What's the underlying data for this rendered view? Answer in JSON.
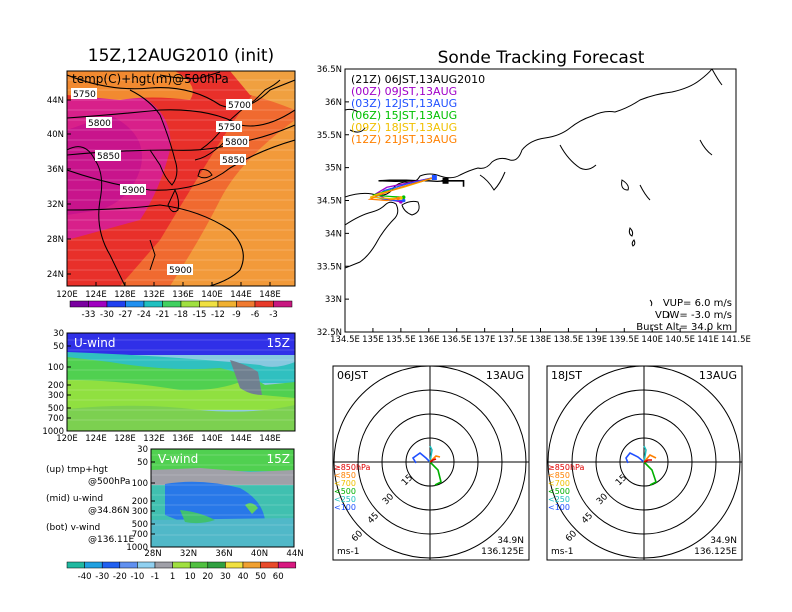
{
  "titles": {
    "left": "15Z,12AUG2010 (init)",
    "right": "Sonde Tracking Forecast"
  },
  "map_panel": {
    "label": "temp(C)+hgt(m)@500hPa",
    "contour_labels": [
      "5750",
      "5700",
      "5800",
      "5750",
      "5800",
      "5850",
      "5850",
      "5900",
      "5900"
    ],
    "lat_ticks": [
      "44N",
      "40N",
      "36N",
      "32N",
      "28N",
      "24N"
    ],
    "lon_ticks": [
      "120E",
      "124E",
      "128E",
      "132E",
      "136E",
      "140E",
      "144E",
      "148E"
    ],
    "colorbar_ticks": [
      "-33",
      "-30",
      "-27",
      "-24",
      "-21",
      "-18",
      "-15",
      "-12",
      "-9",
      "-6",
      "-3"
    ]
  },
  "uwind_panel": {
    "label": "U-wind",
    "time": "15Z",
    "p_ticks": [
      "30",
      "50",
      "100",
      "200",
      "300",
      "500",
      "700",
      "1000"
    ],
    "lon_ticks": [
      "120E",
      "124E",
      "128E",
      "132E",
      "136E",
      "140E",
      "144E",
      "148E"
    ]
  },
  "vwind_panel": {
    "label": "V-wind",
    "time": "15Z",
    "p_ticks": [
      "30",
      "50",
      "100",
      "200",
      "300",
      "500",
      "700",
      "1000"
    ],
    "lat_ticks": [
      "28N",
      "32N",
      "36N",
      "40N",
      "44N"
    ]
  },
  "wind_colorbar_ticks": [
    "-40",
    "-30",
    "-20",
    "-10",
    "-1",
    "1",
    "10",
    "20",
    "30",
    "40",
    "50",
    "60"
  ],
  "notes": [
    {
      "row1": "(up)  tmp+hgt",
      "row2": "@500hPa"
    },
    {
      "row1": "(mid)  u-wind",
      "row2": "@34.86N"
    },
    {
      "row1": "(bot)  v-wind",
      "row2": "@136.11E"
    }
  ],
  "track_panel": {
    "legend": [
      {
        "text": "(21Z)  06JST,13AUG2010",
        "color": "#000000"
      },
      {
        "text": "(00Z)  09JST,13AUG",
        "color": "#a000c8"
      },
      {
        "text": "(03Z)  12JST,13AUG",
        "color": "#2050ff"
      },
      {
        "text": "(06Z)  15JST,13AUG",
        "color": "#00c000"
      },
      {
        "text": "(09Z)  18JST,13AUG",
        "color": "#f0c000"
      },
      {
        "text": "(12Z)  21JST,13AUG",
        "color": "#ff8000"
      }
    ],
    "lat_ticks": [
      "36.5N",
      "36N",
      "35.5N",
      "35N",
      "34.5N",
      "34N",
      "33.5N",
      "33N",
      "32.5N"
    ],
    "lon_ticks": [
      "134.5E",
      "135E",
      "135.5E",
      "136E",
      "136.5E",
      "137E",
      "137.5E",
      "138E",
      "138.5E",
      "139E",
      "139.5E",
      "140E",
      "140.5E",
      "141E",
      "141.5E"
    ],
    "info": [
      "VUP=  6.0  m/s",
      "VDW= -3.0  m/s",
      "Burst Alt=  34.0  km"
    ]
  },
  "hodographs": [
    {
      "time": "06JST",
      "date": "13AUG",
      "loc1": "34.9N",
      "loc2": "136.125E",
      "unit": "ms-1"
    },
    {
      "time": "18JST",
      "date": "13AUG",
      "loc1": "34.9N",
      "loc2": "136.125E",
      "unit": "ms-1"
    }
  ],
  "hodo_rings": [
    "15",
    "30",
    "45",
    "60"
  ],
  "hodo_legend": [
    {
      "text": "≥850hPa",
      "color": "#e00000"
    },
    {
      "text": "<850",
      "color": "#ff8000"
    },
    {
      "text": "<700",
      "color": "#f0c000"
    },
    {
      "text": "<500",
      "color": "#00b000"
    },
    {
      "text": "<250",
      "color": "#20c0c0"
    },
    {
      "text": "<100",
      "color": "#2050ff"
    }
  ],
  "colors": {
    "track_blue": "#2050ff",
    "warm_red": "#e8302a",
    "warm_orange": "#f28a30",
    "magenta": "#d0207a"
  },
  "chart_data": [
    {
      "type": "heatmap",
      "title": "temp(C)+hgt(m)@500hPa",
      "x_range": [
        "120E",
        "150E"
      ],
      "y_range": [
        "22N",
        "47N"
      ],
      "colorbar_values": [
        -33,
        -30,
        -27,
        -24,
        -21,
        -18,
        -15,
        -12,
        -9,
        -6,
        -3
      ]
    },
    {
      "type": "heatmap",
      "title": "U-wind",
      "x_range": [
        "120E",
        "150E"
      ],
      "y_range_hPa": [
        1000,
        30
      ]
    },
    {
      "type": "heatmap",
      "title": "V-wind",
      "x_range": [
        "28N",
        "44N"
      ],
      "y_range_hPa": [
        1000,
        30
      ]
    },
    {
      "type": "line",
      "title": "Sonde Tracking Forecast",
      "xlim": [
        134.5,
        141.5
      ],
      "ylim": [
        32.5,
        36.5
      ],
      "launch_point": [
        136.1,
        34.85
      ],
      "series": [
        {
          "name": "(21Z)  06JST,13AUG2010",
          "x": [
            136.1,
            135.85,
            135.4,
            135.1,
            135.3,
            135.6,
            135.85,
            136.0,
            136.15,
            136.3
          ],
          "y": [
            34.85,
            34.8,
            34.79,
            34.8,
            34.81,
            34.81,
            34.8,
            34.8,
            34.79,
            34.8
          ]
        },
        {
          "name": "(00Z)  09JST,13AUG",
          "x": [
            136.1,
            135.7,
            135.25,
            135.05,
            135.25,
            135.5
          ],
          "y": [
            34.85,
            34.78,
            34.7,
            34.6,
            34.52,
            34.48
          ]
        },
        {
          "name": "(03Z)  12JST,13AUG",
          "x": [
            136.1,
            135.6,
            135.2,
            135.05,
            135.3,
            135.55
          ],
          "y": [
            34.85,
            34.75,
            34.65,
            34.55,
            34.5,
            34.5
          ]
        },
        {
          "name": "(06Z)  15JST,13AUG",
          "x": [
            136.1,
            135.6,
            135.15,
            135.0,
            135.35,
            135.55
          ],
          "y": [
            34.85,
            34.72,
            34.62,
            34.58,
            34.56,
            34.55
          ]
        },
        {
          "name": "(09Z)  18JST,13AUG",
          "x": [
            136.1,
            135.55,
            135.1,
            134.95,
            135.3,
            135.5
          ],
          "y": [
            34.85,
            34.7,
            34.6,
            34.55,
            34.53,
            34.54
          ]
        },
        {
          "name": "(12Z)  21JST,13AUG",
          "x": [
            136.1,
            135.5,
            135.1,
            134.95,
            135.25,
            135.45
          ],
          "y": [
            34.85,
            34.7,
            34.58,
            34.52,
            34.5,
            34.53
          ]
        }
      ]
    }
  ]
}
